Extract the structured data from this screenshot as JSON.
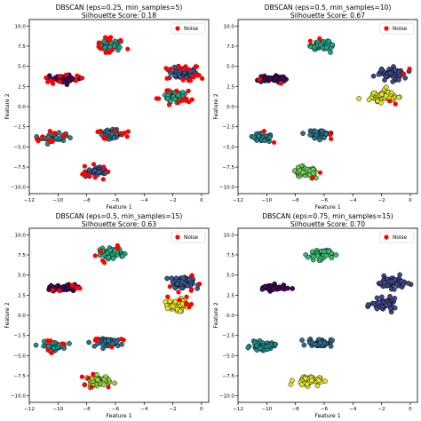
{
  "chart_data": [
    {
      "type": "scatter",
      "title": "DBSCAN (eps=0.25, min_samples=5)",
      "subtitle": "Silhouette Score: 0.18",
      "xlabel": "Feature 1",
      "ylabel": "Feature 2",
      "xlim": [
        -12,
        0.5
      ],
      "ylim": [
        -10.8,
        10.8
      ],
      "xticks": [
        -12,
        -10,
        -8,
        -6,
        -4,
        -2,
        0
      ],
      "yticks": [
        -10.0,
        -7.5,
        -5.0,
        -2.5,
        0.0,
        2.5,
        5.0,
        7.5,
        10.0
      ],
      "legend": [
        "Noise"
      ],
      "legend_position": "top-right",
      "noise_color": "#ff0000",
      "colormap": "viridis",
      "clusters": [
        {
          "center": [
            -6.3,
            7.6
          ],
          "spread": [
            0.75,
            0.6
          ],
          "n": 45,
          "label": 0.55,
          "noise": 0.32
        },
        {
          "center": [
            -1.3,
            4.1
          ],
          "spread": [
            0.9,
            0.65
          ],
          "n": 55,
          "label": 0.28,
          "noise": 0.3
        },
        {
          "center": [
            -1.8,
            1.3
          ],
          "spread": [
            0.8,
            0.65
          ],
          "n": 45,
          "label": 0.6,
          "noise": 0.3
        },
        {
          "center": [
            -9.6,
            3.4
          ],
          "spread": [
            0.85,
            0.35
          ],
          "n": 45,
          "label": 0.02,
          "noise": 0.25
        },
        {
          "center": [
            -10.3,
            -3.8
          ],
          "spread": [
            0.75,
            0.45
          ],
          "n": 45,
          "label": 0.45,
          "noise": 0.22
        },
        {
          "center": [
            -6.3,
            -3.4
          ],
          "spread": [
            0.75,
            0.45
          ],
          "n": 45,
          "label": 0.38,
          "noise": 0.22
        },
        {
          "center": [
            -7.2,
            -8.1
          ],
          "spread": [
            0.8,
            0.55
          ],
          "n": 45,
          "label": 0.25,
          "noise": 0.25
        }
      ]
    },
    {
      "type": "scatter",
      "title": "DBSCAN (eps=0.5, min_samples=10)",
      "subtitle": "Silhouette Score: 0.67",
      "xlabel": "Feature 1",
      "ylabel": "Feature 2",
      "xlim": [
        -12,
        0.5
      ],
      "ylim": [
        -10.8,
        10.8
      ],
      "xticks": [
        -12,
        -10,
        -8,
        -6,
        -4,
        -2,
        0
      ],
      "yticks": [
        -10.0,
        -7.5,
        -5.0,
        -2.5,
        0.0,
        2.5,
        5.0,
        7.5,
        10.0
      ],
      "legend": [
        "Noise"
      ],
      "legend_position": "top-right",
      "noise_color": "#ff0000",
      "colormap": "viridis",
      "clusters": [
        {
          "center": [
            -6.3,
            7.6
          ],
          "spread": [
            0.75,
            0.6
          ],
          "n": 55,
          "label": 0.58,
          "noise": 0.04
        },
        {
          "center": [
            -1.3,
            4.1
          ],
          "spread": [
            0.9,
            0.65
          ],
          "n": 60,
          "label": 0.22,
          "noise": 0.04
        },
        {
          "center": [
            -1.8,
            1.3
          ],
          "spread": [
            0.8,
            0.65
          ],
          "n": 55,
          "label": 0.96,
          "noise": 0.04
        },
        {
          "center": [
            -9.6,
            3.4
          ],
          "spread": [
            0.85,
            0.35
          ],
          "n": 50,
          "label": 0.02,
          "noise": 0.04
        },
        {
          "center": [
            -10.3,
            -3.8
          ],
          "spread": [
            0.75,
            0.45
          ],
          "n": 50,
          "label": 0.45,
          "noise": 0.04
        },
        {
          "center": [
            -6.3,
            -3.4
          ],
          "spread": [
            0.75,
            0.45
          ],
          "n": 50,
          "label": 0.38,
          "noise": 0.04
        },
        {
          "center": [
            -7.2,
            -8.1
          ],
          "spread": [
            0.8,
            0.55
          ],
          "n": 50,
          "label": 0.78,
          "noise": 0.04
        }
      ]
    },
    {
      "type": "scatter",
      "title": "DBSCAN (eps=0.5, min_samples=15)",
      "subtitle": "Silhouette Score: 0.63",
      "xlabel": "Feature 1",
      "ylabel": "Feature 2",
      "xlim": [
        -12,
        0.5
      ],
      "ylim": [
        -10.8,
        10.8
      ],
      "xticks": [
        -12,
        -10,
        -8,
        -6,
        -4,
        -2,
        0
      ],
      "yticks": [
        -10.0,
        -7.5,
        -5.0,
        -2.5,
        0.0,
        2.5,
        5.0,
        7.5,
        10.0
      ],
      "legend": [
        "Noise"
      ],
      "legend_position": "top-right",
      "noise_color": "#ff0000",
      "colormap": "viridis",
      "clusters": [
        {
          "center": [
            -6.3,
            7.6
          ],
          "spread": [
            0.75,
            0.6
          ],
          "n": 55,
          "label": 0.62,
          "noise": 0.1
        },
        {
          "center": [
            -1.3,
            4.1
          ],
          "spread": [
            0.9,
            0.65
          ],
          "n": 60,
          "label": 0.28,
          "noise": 0.1
        },
        {
          "center": [
            -1.8,
            1.3
          ],
          "spread": [
            0.8,
            0.65
          ],
          "n": 55,
          "label": 0.97,
          "noise": 0.1
        },
        {
          "center": [
            -9.6,
            3.4
          ],
          "spread": [
            0.85,
            0.35
          ],
          "n": 50,
          "label": 0.02,
          "noise": 0.1
        },
        {
          "center": [
            -10.3,
            -3.8
          ],
          "spread": [
            0.75,
            0.45
          ],
          "n": 50,
          "label": 0.5,
          "noise": 0.12
        },
        {
          "center": [
            -6.3,
            -3.4
          ],
          "spread": [
            0.75,
            0.45
          ],
          "n": 50,
          "label": 0.38,
          "noise": 0.12
        },
        {
          "center": [
            -7.2,
            -8.1
          ],
          "spread": [
            0.8,
            0.55
          ],
          "n": 50,
          "label": 0.85,
          "noise": 0.12
        }
      ]
    },
    {
      "type": "scatter",
      "title": "DBSCAN (eps=0.75, min_samples=15)",
      "subtitle": "Silhouette Score: 0.70",
      "xlabel": "Feature 1",
      "ylabel": "Feature 2",
      "xlim": [
        -12,
        0.5
      ],
      "ylim": [
        -10.8,
        10.8
      ],
      "xticks": [
        -12,
        -10,
        -8,
        -6,
        -4,
        -2,
        0
      ],
      "yticks": [
        -10.0,
        -7.5,
        -5.0,
        -2.5,
        0.0,
        2.5,
        5.0,
        7.5,
        10.0
      ],
      "legend": [
        "Noise"
      ],
      "legend_position": "top-right",
      "noise_color": "#ff0000",
      "colormap": "viridis",
      "clusters": [
        {
          "center": [
            -6.3,
            7.6
          ],
          "spread": [
            0.75,
            0.6
          ],
          "n": 55,
          "label": 0.68,
          "noise": 0.0
        },
        {
          "center": [
            -1.3,
            4.1
          ],
          "spread": [
            0.9,
            0.65
          ],
          "n": 60,
          "label": 0.22,
          "noise": 0.0
        },
        {
          "center": [
            -1.8,
            1.3
          ],
          "spread": [
            0.8,
            0.65
          ],
          "n": 55,
          "label": 0.22,
          "noise": 0.0
        },
        {
          "center": [
            -9.6,
            3.4
          ],
          "spread": [
            0.85,
            0.35
          ],
          "n": 50,
          "label": 0.02,
          "noise": 0.0
        },
        {
          "center": [
            -10.3,
            -3.8
          ],
          "spread": [
            0.75,
            0.45
          ],
          "n": 50,
          "label": 0.48,
          "noise": 0.0
        },
        {
          "center": [
            -6.3,
            -3.4
          ],
          "spread": [
            0.75,
            0.45
          ],
          "n": 50,
          "label": 0.36,
          "noise": 0.0
        },
        {
          "center": [
            -7.2,
            -8.1
          ],
          "spread": [
            0.8,
            0.55
          ],
          "n": 50,
          "label": 0.96,
          "noise": 0.0
        }
      ]
    }
  ]
}
